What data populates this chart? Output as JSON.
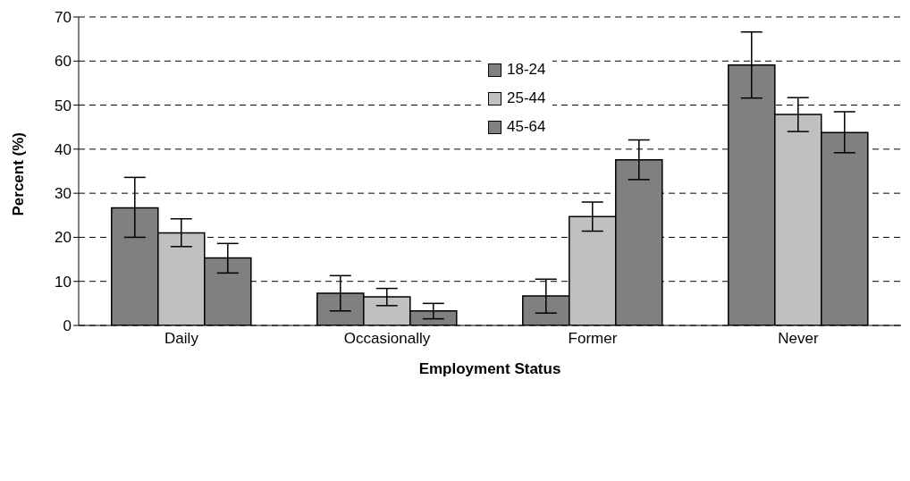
{
  "chart_data": {
    "type": "bar",
    "xlabel": "Employment Status",
    "ylabel": "Percent (%)",
    "categories": [
      "Daily",
      "Occasionally",
      "Former",
      "Never"
    ],
    "series": [
      {
        "name": "18-24",
        "color": "#808080",
        "values": [
          26.7,
          7.3,
          6.7,
          59.1
        ],
        "errors": [
          [
            20.0,
            33.6
          ],
          [
            3.3,
            11.3
          ],
          [
            2.8,
            10.5
          ],
          [
            51.6,
            66.6
          ]
        ]
      },
      {
        "name": "25-44",
        "color": "#c0c0c0",
        "values": [
          21.0,
          6.5,
          24.7,
          47.9
        ],
        "errors": [
          [
            17.9,
            24.2
          ],
          [
            4.5,
            8.4
          ],
          [
            21.4,
            28.0
          ],
          [
            44.0,
            51.7
          ]
        ]
      },
      {
        "name": "45-64",
        "color": "#808080",
        "values": [
          15.3,
          3.3,
          37.6,
          43.8
        ],
        "errors": [
          [
            11.9,
            18.6
          ],
          [
            1.5,
            5.0
          ],
          [
            33.1,
            42.1
          ],
          [
            39.2,
            48.5
          ]
        ]
      }
    ],
    "ylim": [
      0,
      70
    ],
    "yticks": [
      0,
      10,
      20,
      30,
      40,
      50,
      60,
      70
    ],
    "grid": "y",
    "legend": "top"
  }
}
